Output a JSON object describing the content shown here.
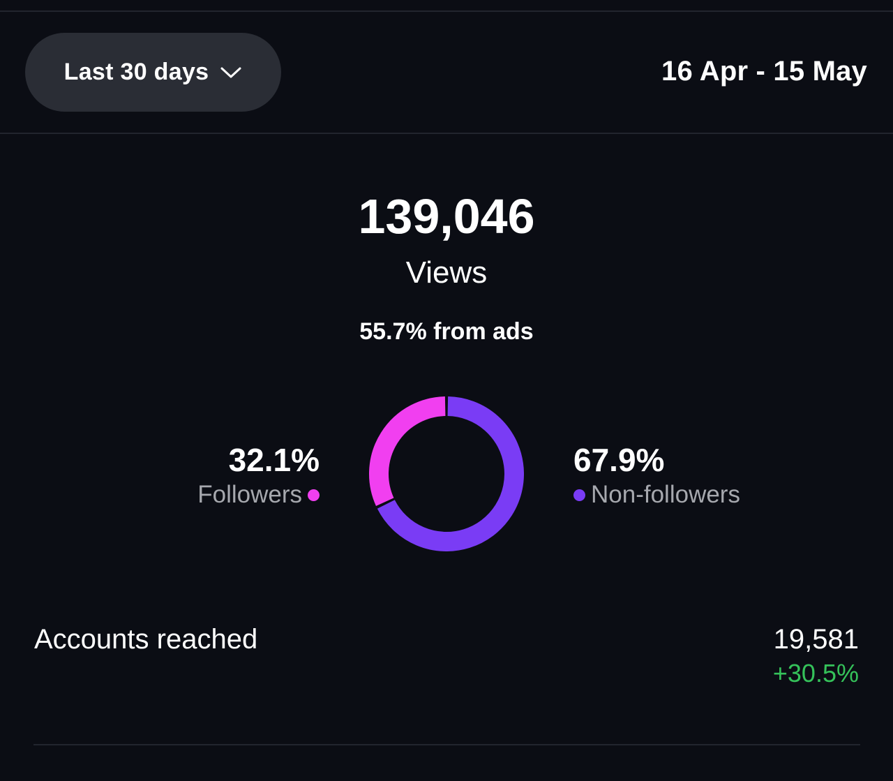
{
  "header": {
    "range_label": "Last 30 days",
    "date_range": "16 Apr - 15 May"
  },
  "summary": {
    "views_count": "139,046",
    "views_label": "Views",
    "ads_share": "55.7% from ads"
  },
  "breakdown": {
    "followers_pct": "32.1%",
    "followers_label": "Followers",
    "followers_color": "#f13ff0",
    "nonfollowers_pct": "67.9%",
    "nonfollowers_label": "Non-followers",
    "nonfollowers_color": "#7a3cf5"
  },
  "chart_data": {
    "type": "pie",
    "categories": [
      "Followers",
      "Non-followers"
    ],
    "values": [
      32.1,
      67.9
    ],
    "colors": [
      "#f13ff0",
      "#7a3cf5"
    ]
  },
  "accounts": {
    "label": "Accounts reached",
    "value": "19,581",
    "change": "+30.5%",
    "change_color": "#35c25a"
  }
}
